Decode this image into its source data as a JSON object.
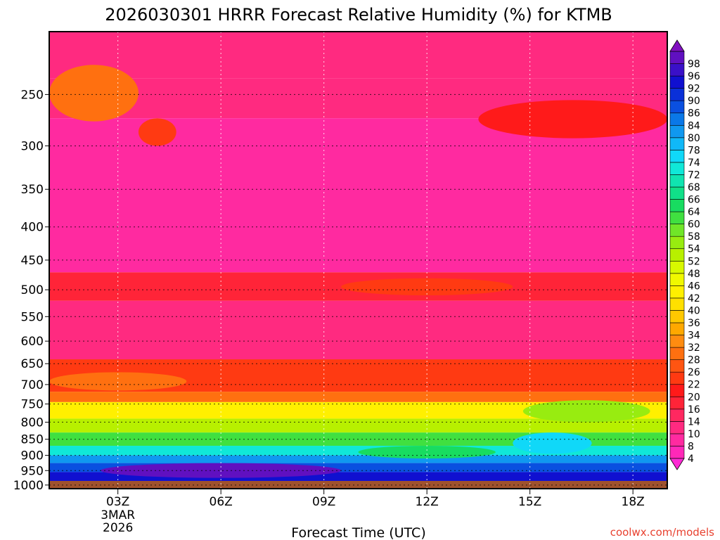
{
  "title": "2026030301 HRRR Forecast Relative Humidity (%) for KTMB",
  "credit": "coolwx.com/models",
  "chart_data": {
    "type": "heatmap",
    "title": "2026030301 HRRR Forecast Relative Humidity (%) for KTMB",
    "xlabel": "Forecast Time (UTC)",
    "ylabel": "",
    "x_ticks": [
      {
        "hour": 3,
        "label": "03Z",
        "sub": [
          "3MAR",
          "2026"
        ]
      },
      {
        "hour": 6,
        "label": "06Z",
        "sub": []
      },
      {
        "hour": 9,
        "label": "09Z",
        "sub": []
      },
      {
        "hour": 12,
        "label": "12Z",
        "sub": []
      },
      {
        "hour": 15,
        "label": "15Z",
        "sub": []
      },
      {
        "hour": 18,
        "label": "18Z",
        "sub": []
      }
    ],
    "xlim": [
      1,
      19
    ],
    "y_ticks": [
      "250",
      "300",
      "350",
      "400",
      "450",
      "500",
      "550",
      "600",
      "650",
      "700",
      "750",
      "800",
      "850",
      "900",
      "950",
      "1000"
    ],
    "ylim": [
      1013,
      200
    ],
    "y_scale": "log",
    "grid": true,
    "colorbar": {
      "levels": [
        "4",
        "8",
        "10",
        "14",
        "16",
        "20",
        "22",
        "26",
        "28",
        "32",
        "34",
        "36",
        "40",
        "42",
        "46",
        "48",
        "52",
        "54",
        "58",
        "60",
        "64",
        "66",
        "68",
        "72",
        "74",
        "78",
        "80",
        "84",
        "86",
        "90",
        "92",
        "96",
        "98"
      ],
      "colors": [
        "#ff2ad4",
        "#ff28b8",
        "#ff2aa0",
        "#ff2a80",
        "#ff2860",
        "#ff2438",
        "#ff1a1a",
        "#ff3a12",
        "#ff5512",
        "#ff7010",
        "#ff8c10",
        "#ffa800",
        "#ffc800",
        "#ffe000",
        "#fff000",
        "#f0f800",
        "#d8f800",
        "#b8f000",
        "#98ec10",
        "#70e628",
        "#40e040",
        "#18dc60",
        "#10e088",
        "#10e4b0",
        "#10e8d8",
        "#10d8f8",
        "#10b8f8",
        "#1098f0",
        "#0a78e8",
        "#0a50e0",
        "#0a30d8",
        "#1010d0",
        "#3a10c8",
        "#6010c0",
        "#8010c0"
      ],
      "extend": "both"
    },
    "humidity_bands": [
      {
        "p_top": 200,
        "p_bottom": 236,
        "rh": 12
      },
      {
        "p_top": 236,
        "p_bottom": 272,
        "rh": 10
      },
      {
        "p_top": 272,
        "p_bottom": 470,
        "rh": 8
      },
      {
        "p_top": 470,
        "p_bottom": 520,
        "rh": 18
      },
      {
        "p_top": 520,
        "p_bottom": 640,
        "rh": 10
      },
      {
        "p_top": 640,
        "p_bottom": 718,
        "rh": 22
      },
      {
        "p_top": 718,
        "p_bottom": 745,
        "rh": 30
      },
      {
        "p_top": 745,
        "p_bottom": 790,
        "rh": 44
      },
      {
        "p_top": 790,
        "p_bottom": 830,
        "rh": 52
      },
      {
        "p_top": 830,
        "p_bottom": 870,
        "rh": 60
      },
      {
        "p_top": 870,
        "p_bottom": 900,
        "rh": 72
      },
      {
        "p_top": 900,
        "p_bottom": 925,
        "rh": 82
      },
      {
        "p_top": 925,
        "p_bottom": 955,
        "rh": 88
      },
      {
        "p_top": 955,
        "p_bottom": 990,
        "rh": 94
      },
      {
        "p_top": 990,
        "p_bottom": 1004,
        "rh": 84
      }
    ],
    "features": [
      {
        "hour_start": 1,
        "hour_end": 3.6,
        "p_top": 225,
        "p_bottom": 275,
        "rh": 28
      },
      {
        "hour_start": 3.6,
        "hour_end": 4.7,
        "p_top": 272,
        "p_bottom": 300,
        "rh": 24
      },
      {
        "hour_start": 13.5,
        "hour_end": 19,
        "p_top": 255,
        "p_bottom": 292,
        "rh": 20
      },
      {
        "hour_start": 9.5,
        "hour_end": 14.5,
        "p_top": 480,
        "p_bottom": 510,
        "rh": 22
      },
      {
        "hour_start": 1,
        "hour_end": 5,
        "p_top": 670,
        "p_bottom": 715,
        "rh": 30
      },
      {
        "hour_start": 14.8,
        "hour_end": 18.5,
        "p_top": 740,
        "p_bottom": 800,
        "rh": 56
      },
      {
        "hour_start": 14.5,
        "hour_end": 16.8,
        "p_top": 830,
        "p_bottom": 895,
        "rh": 76
      },
      {
        "hour_start": 10,
        "hour_end": 14,
        "p_top": 870,
        "p_bottom": 910,
        "rh": 64
      },
      {
        "hour_start": 2.5,
        "hour_end": 9.5,
        "p_top": 925,
        "p_bottom": 975,
        "rh": 98
      }
    ]
  }
}
